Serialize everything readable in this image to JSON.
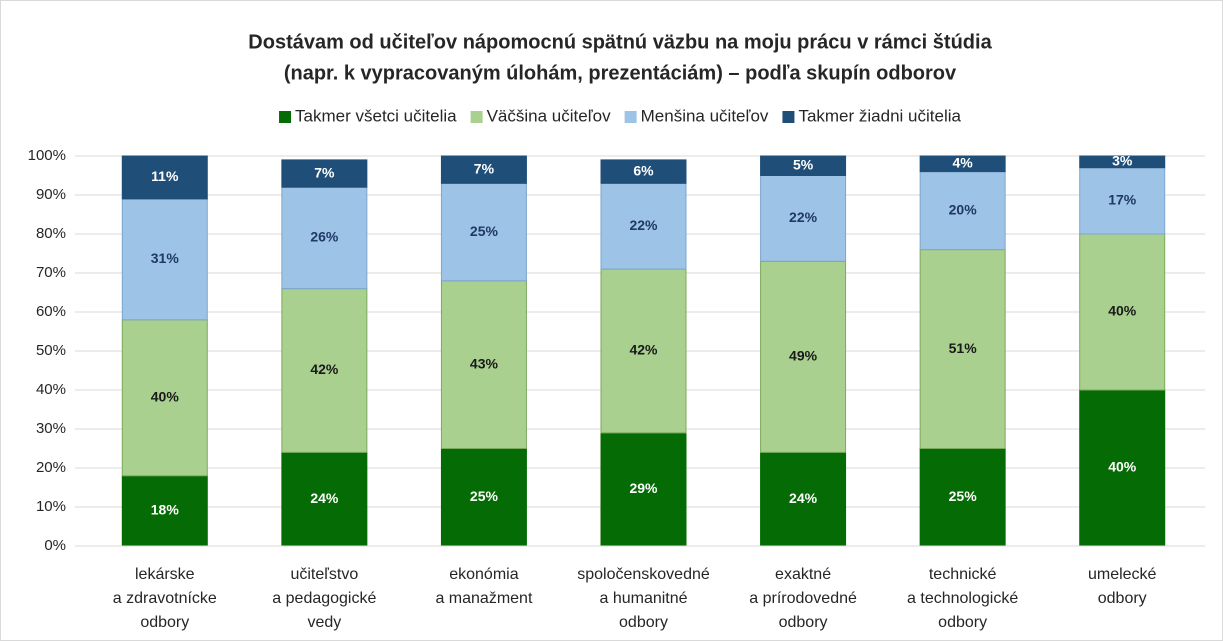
{
  "chart_data": {
    "type": "stacked_bar_100",
    "title": [
      "Dostávam od učiteľov nápomocnú spätnú väzbu na moju prácu v rámci štúdia",
      "(napr. k vypracovaným úlohám, prezentáciám) – podľa skupín odborov"
    ],
    "categories": [
      [
        "lekárske",
        "a zdravotnícke",
        "odbory"
      ],
      [
        "učiteľstvo",
        "a pedagogické",
        "vedy"
      ],
      [
        "ekonómia",
        "a manažment"
      ],
      [
        "spoločenskovedné",
        "a humanitné",
        "odbory"
      ],
      [
        "exaktné",
        "a prírodovedné",
        "odbory"
      ],
      [
        "technické",
        "a technologické",
        "odbory"
      ],
      [
        "umelecké",
        "odbory"
      ]
    ],
    "series": [
      {
        "name": "Takmer všetci učitelia",
        "color": "#056b05",
        "values": [
          18,
          24,
          25,
          29,
          24,
          25,
          40
        ],
        "value_labels": [
          "18%",
          "24%",
          "25%",
          "29%",
          "24%",
          "25%",
          "40%"
        ]
      },
      {
        "name": "Väčšina učiteľov",
        "color": "#a9d08e",
        "values": [
          40,
          42,
          43,
          42,
          49,
          51,
          40
        ],
        "value_labels": [
          "40%",
          "42%",
          "43%",
          "42%",
          "49%",
          "51%",
          "40%"
        ]
      },
      {
        "name": "Menšina učiteľov",
        "color": "#9dc3e6",
        "values": [
          31,
          26,
          25,
          22,
          22,
          20,
          17
        ],
        "value_labels": [
          "31%",
          "26%",
          "25%",
          "22%",
          "22%",
          "20%",
          "17%"
        ]
      },
      {
        "name": "Takmer žiadni učitelia",
        "color": "#1f4e79",
        "values": [
          11,
          7,
          7,
          6,
          5,
          4,
          3
        ],
        "value_labels": [
          "11%",
          "7%",
          "7%",
          "6%",
          "5%",
          "4%",
          "3%"
        ]
      }
    ],
    "ylim": [
      0,
      100
    ],
    "yticks": [
      {
        "value": 0,
        "label": "0%"
      },
      {
        "value": 10,
        "label": "10%"
      },
      {
        "value": 20,
        "label": "20%"
      },
      {
        "value": 30,
        "label": "30%"
      },
      {
        "value": 40,
        "label": "40%"
      },
      {
        "value": 50,
        "label": "50%"
      },
      {
        "value": 60,
        "label": "60%"
      },
      {
        "value": 70,
        "label": "70%"
      },
      {
        "value": 80,
        "label": "80%"
      },
      {
        "value": 90,
        "label": "90%"
      },
      {
        "value": 100,
        "label": "100%"
      }
    ],
    "grid": true,
    "legend": "top"
  }
}
